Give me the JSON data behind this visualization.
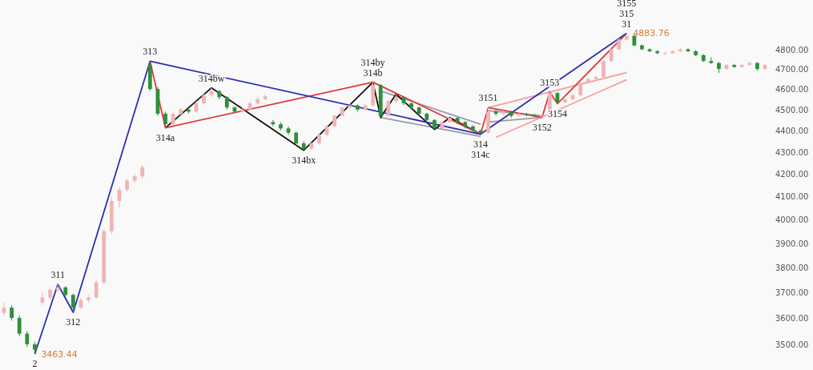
{
  "chart_data": {
    "type": "candlestick",
    "log": true,
    "tick_labels": "y",
    "ylim": [
      3405,
      5060
    ],
    "yticks": [
      {
        "value": 3500,
        "label": "3500.00"
      },
      {
        "value": 3600,
        "label": "3600.00"
      },
      {
        "value": 3700,
        "label": "3700.00"
      },
      {
        "value": 3800,
        "label": "3800.00"
      },
      {
        "value": 3900,
        "label": "3900.00"
      },
      {
        "value": 4000,
        "label": "4000.00"
      },
      {
        "value": 4100,
        "label": "4100.00"
      },
      {
        "value": 4200,
        "label": "4200.00"
      },
      {
        "value": 4300,
        "label": "4300.00"
      },
      {
        "value": 4400,
        "label": "4400.00"
      },
      {
        "value": 4500,
        "label": "4500.00"
      },
      {
        "value": 4600,
        "label": "4600.00"
      },
      {
        "value": 4700,
        "label": "4700.00"
      },
      {
        "value": 4800,
        "label": "4800.00"
      }
    ],
    "categories": [
      null,
      null,
      null,
      null,
      null,
      null,
      null,
      null,
      null,
      null,
      null,
      null,
      null,
      null,
      null,
      null,
      null,
      null,
      null,
      null,
      null,
      null,
      null,
      null,
      null,
      null,
      null,
      null,
      null,
      null,
      null,
      null,
      null,
      null,
      null,
      null,
      null,
      null,
      null,
      null,
      null,
      null,
      null,
      null,
      null,
      null,
      null,
      null,
      null,
      null,
      null,
      null,
      null,
      null,
      null,
      null,
      null,
      null,
      null,
      null,
      null,
      null,
      null,
      null,
      null,
      null,
      null,
      null,
      null,
      null,
      null,
      null,
      null,
      null,
      null,
      null,
      null,
      null,
      null,
      null,
      null,
      null,
      null,
      null,
      null,
      null,
      null,
      null,
      null,
      null,
      null,
      null,
      null,
      null,
      null,
      null,
      null,
      null,
      null,
      null
    ],
    "ohlc": [
      [
        3620,
        3660,
        3610,
        3640
      ],
      [
        3640,
        3650,
        3590,
        3600
      ],
      [
        3600,
        3610,
        3530,
        3540
      ],
      [
        3540,
        3550,
        3490,
        3500
      ],
      [
        3500,
        3510,
        3463.44,
        3480
      ],
      [
        3660,
        3700,
        3650,
        3680
      ],
      [
        3680,
        3720,
        3670,
        3710
      ],
      [
        3710,
        3732,
        3700,
        3720
      ],
      [
        3720,
        3725,
        3680,
        3690
      ],
      [
        3690,
        3695,
        3622,
        3640
      ],
      [
        3640,
        3680,
        3635,
        3670
      ],
      [
        3670,
        3690,
        3660,
        3680
      ],
      [
        3680,
        3750,
        3675,
        3740
      ],
      [
        3740,
        3960,
        3730,
        3950
      ],
      [
        3950,
        4100,
        3940,
        4080
      ],
      [
        4080,
        4140,
        4050,
        4130
      ],
      [
        4130,
        4180,
        4120,
        4170
      ],
      [
        4170,
        4200,
        4160,
        4190
      ],
      [
        4190,
        4240,
        4180,
        4230
      ],
      [
        4720,
        4739,
        4590,
        4600
      ],
      [
        4600,
        4610,
        4470,
        4480
      ],
      [
        4480,
        4490,
        4413,
        4430
      ],
      [
        4430,
        4490,
        4425,
        4480
      ],
      [
        4480,
        4510,
        4470,
        4500
      ],
      [
        4500,
        4510,
        4480,
        4490
      ],
      [
        4490,
        4540,
        4485,
        4530
      ],
      [
        4530,
        4580,
        4525,
        4570
      ],
      [
        4570,
        4606,
        4560,
        4590
      ],
      [
        4590,
        4595,
        4550,
        4560
      ],
      [
        4560,
        4565,
        4500,
        4510
      ],
      [
        4510,
        4515,
        4480,
        4490
      ],
      [
        4490,
        4510,
        4485,
        4500
      ],
      [
        4500,
        4540,
        4495,
        4530
      ],
      [
        4530,
        4560,
        4525,
        4550
      ],
      [
        4550,
        4575,
        4545,
        4565
      ],
      [
        4440,
        4450,
        4420,
        4430
      ],
      [
        4430,
        4440,
        4400,
        4410
      ],
      [
        4410,
        4420,
        4380,
        4390
      ],
      [
        4390,
        4395,
        4330,
        4340
      ],
      [
        4340,
        4350,
        4308,
        4315
      ],
      [
        4315,
        4345,
        4310,
        4340
      ],
      [
        4340,
        4385,
        4335,
        4380
      ],
      [
        4380,
        4425,
        4375,
        4420
      ],
      [
        4420,
        4475,
        4415,
        4470
      ],
      [
        4470,
        4515,
        4465,
        4510
      ],
      [
        4510,
        4530,
        4500,
        4520
      ],
      [
        4520,
        4525,
        4490,
        4500
      ],
      [
        4500,
        4530,
        4495,
        4520
      ],
      [
        4520,
        4634,
        4515,
        4620
      ],
      [
        4620,
        4625,
        4462,
        4470
      ],
      [
        4470,
        4550,
        4465,
        4540
      ],
      [
        4540,
        4575,
        4535,
        4560
      ],
      [
        4560,
        4565,
        4520,
        4530
      ],
      [
        4530,
        4535,
        4500,
        4510
      ],
      [
        4510,
        4515,
        4470,
        4480
      ],
      [
        4480,
        4485,
        4440,
        4450
      ],
      [
        4450,
        4455,
        4405,
        4410
      ],
      [
        4410,
        4445,
        4405,
        4440
      ],
      [
        4440,
        4462,
        4435,
        4460
      ],
      [
        4460,
        4465,
        4430,
        4440
      ],
      [
        4440,
        4445,
        4410,
        4420
      ],
      [
        4420,
        4425,
        4395,
        4400
      ],
      [
        4400,
        4405,
        4383,
        4390
      ],
      [
        4390,
        4509,
        4385,
        4490
      ],
      [
        4490,
        4500,
        4470,
        4480
      ],
      [
        4480,
        4495,
        4470,
        4490
      ],
      [
        4490,
        4495,
        4460,
        4470
      ],
      [
        4470,
        4485,
        4465,
        4480
      ],
      [
        4480,
        4485,
        4468,
        4475
      ],
      [
        4475,
        4480,
        4465,
        4470
      ],
      [
        4470,
        4478,
        4462,
        4470
      ],
      [
        4470,
        4586,
        4465,
        4580
      ],
      [
        4580,
        4585,
        4528,
        4535
      ],
      [
        4535,
        4555,
        4530,
        4550
      ],
      [
        4550,
        4575,
        4545,
        4570
      ],
      [
        4570,
        4635,
        4565,
        4630
      ],
      [
        4630,
        4655,
        4625,
        4650
      ],
      [
        4650,
        4665,
        4640,
        4660
      ],
      [
        4660,
        4745,
        4655,
        4740
      ],
      [
        4740,
        4805,
        4735,
        4800
      ],
      [
        4800,
        4855,
        4795,
        4850
      ],
      [
        4850,
        4883.76,
        4845,
        4870
      ],
      [
        4870,
        4875,
        4815,
        4820
      ],
      [
        4820,
        4825,
        4795,
        4800
      ],
      [
        4800,
        4805,
        4785,
        4790
      ],
      [
        4790,
        4795,
        4775,
        4780
      ],
      [
        4780,
        4790,
        4770,
        4780
      ],
      [
        4780,
        4795,
        4775,
        4790
      ],
      [
        4790,
        4805,
        4785,
        4800
      ],
      [
        4800,
        4805,
        4785,
        4790
      ],
      [
        4790,
        4795,
        4765,
        4770
      ],
      [
        4770,
        4775,
        4735,
        4740
      ],
      [
        4740,
        4760,
        4725,
        4730
      ],
      [
        4730,
        4735,
        4680,
        4700
      ],
      [
        4700,
        4725,
        4695,
        4720
      ],
      [
        4720,
        4725,
        4705,
        4710
      ],
      [
        4710,
        4725,
        4705,
        4720
      ],
      [
        4720,
        4740,
        4715,
        4730
      ],
      [
        4730,
        4735,
        4690,
        4700
      ],
      [
        4700,
        4725,
        4695,
        4720
      ]
    ],
    "annotations": [
      {
        "text": "2",
        "y": 3463
      },
      {
        "text": "311",
        "y": 3732
      },
      {
        "text": "312",
        "y": 3622
      },
      {
        "text": "313",
        "y": 4739
      },
      {
        "text": "314a",
        "y": 4413
      },
      {
        "text": "314bw",
        "y": 4606
      },
      {
        "text": "314bx",
        "y": 4308
      },
      {
        "text": "314by\n314b",
        "y": 4634
      },
      {
        "text": "314\n314c",
        "y": 4383
      },
      {
        "text": "3151",
        "y": 4509
      },
      {
        "text": "3152",
        "y": 4462
      },
      {
        "text": "3153",
        "y": 4586
      },
      {
        "text": "3154",
        "y": 4528
      },
      {
        "text": "3155\n315\n31",
        "y": 4883
      },
      "3463.44",
      "4883.76"
    ],
    "series": [
      {
        "type": "line",
        "color": "#9a9aa8",
        "values": [
          null,
          null,
          null,
          null,
          null,
          null,
          null,
          null,
          null,
          null,
          null,
          null,
          null,
          null,
          null,
          null,
          null,
          null,
          null,
          null,
          null,
          null,
          null,
          null,
          null,
          null,
          null,
          null,
          null,
          null,
          null,
          null,
          null,
          null,
          null,
          null,
          null,
          null,
          null,
          null,
          null,
          null,
          null,
          null,
          null,
          null,
          null,
          null,
          null,
          4590,
          null,
          null,
          null,
          null,
          null,
          null,
          null,
          null,
          null,
          null,
          null,
          null,
          4430,
          null,
          null,
          null,
          null,
          null,
          null,
          null,
          null,
          null,
          null,
          null,
          null,
          null,
          null,
          null,
          null,
          null,
          null,
          null,
          null,
          null,
          null,
          null,
          null,
          null,
          null,
          null,
          null,
          null,
          null,
          null,
          null,
          null,
          null,
          null,
          null,
          null
        ]
      },
      {
        "type": "line",
        "color": "#9a9aa8",
        "values": [
          null,
          null,
          null,
          null,
          null,
          null,
          null,
          null,
          null,
          null,
          null,
          null,
          null,
          null,
          null,
          null,
          null,
          null,
          null,
          null,
          null,
          null,
          null,
          null,
          null,
          null,
          null,
          null,
          null,
          null,
          null,
          null,
          null,
          null,
          null,
          null,
          null,
          null,
          null,
          null,
          null,
          null,
          null,
          null,
          null,
          null,
          null,
          null,
          null,
          4462,
          null,
          null,
          null,
          null,
          null,
          null,
          null,
          null,
          null,
          null,
          null,
          null,
          4372,
          null,
          null,
          null,
          null,
          null,
          null,
          null,
          null,
          null,
          null,
          null,
          null,
          null,
          null,
          null,
          null,
          null,
          null,
          null,
          null,
          null,
          null,
          null,
          null,
          null,
          null,
          null,
          null,
          null,
          null,
          null,
          null,
          null,
          null,
          null,
          null,
          null
        ]
      },
      {
        "type": "line",
        "color": "#9a9aa8",
        "values": [
          null,
          null,
          null,
          null,
          null,
          null,
          null,
          null,
          null,
          null,
          null,
          null,
          null,
          null,
          null,
          null,
          null,
          null,
          null,
          null,
          null,
          null,
          null,
          null,
          null,
          null,
          null,
          null,
          null,
          null,
          null,
          null,
          null,
          null,
          null,
          null,
          null,
          null,
          null,
          null,
          null,
          null,
          null,
          null,
          null,
          null,
          null,
          null,
          null,
          null,
          null,
          null,
          null,
          null,
          null,
          null,
          null,
          null,
          null,
          null,
          null,
          null,
          null,
          4495,
          null,
          null,
          null,
          null,
          null,
          null,
          4470,
          null,
          null,
          null,
          null,
          null,
          null,
          null,
          null,
          null,
          null,
          null,
          null,
          null,
          null,
          null,
          null,
          null,
          null,
          null,
          null,
          null,
          null,
          null,
          null,
          null,
          null,
          null,
          null,
          null
        ]
      },
      {
        "type": "line",
        "color": "#9a9aa8",
        "values": [
          null,
          null,
          null,
          null,
          null,
          null,
          null,
          null,
          null,
          null,
          null,
          null,
          null,
          null,
          null,
          null,
          null,
          null,
          null,
          null,
          null,
          null,
          null,
          null,
          null,
          null,
          null,
          null,
          null,
          null,
          null,
          null,
          null,
          null,
          null,
          null,
          null,
          null,
          null,
          null,
          null,
          null,
          null,
          null,
          null,
          null,
          null,
          null,
          null,
          null,
          null,
          null,
          null,
          null,
          null,
          null,
          null,
          null,
          null,
          null,
          null,
          null,
          null,
          4440,
          null,
          null,
          null,
          null,
          null,
          null,
          4462,
          null,
          null,
          null,
          null,
          null,
          null,
          null,
          null,
          null,
          null,
          null,
          null,
          null,
          null,
          null,
          null,
          null,
          null,
          null,
          null,
          null,
          null,
          null,
          null,
          null,
          null,
          null,
          null,
          null
        ]
      },
      {
        "type": "line",
        "color": "#f2a0a0",
        "values": [
          null,
          null,
          null,
          null,
          null,
          null,
          null,
          null,
          null,
          null,
          null,
          null,
          null,
          null,
          null,
          null,
          null,
          null,
          null,
          null,
          null,
          null,
          null,
          null,
          null,
          null,
          null,
          null,
          null,
          null,
          null,
          null,
          null,
          null,
          null,
          null,
          null,
          null,
          null,
          null,
          null,
          null,
          null,
          null,
          null,
          null,
          null,
          null,
          null,
          null,
          null,
          null,
          null,
          null,
          null,
          null,
          null,
          null,
          null,
          null,
          null,
          null,
          null,
          4509,
          null,
          null,
          null,
          null,
          null,
          null,
          null,
          null,
          null,
          null,
          null,
          null,
          null,
          null,
          null,
          null,
          null,
          4682,
          null,
          null,
          null,
          null,
          null,
          null,
          null,
          null,
          null,
          null,
          null,
          null,
          null,
          null,
          null,
          null,
          null,
          null
        ]
      },
      {
        "type": "line",
        "color": "#f2a0a0",
        "values": [
          null,
          null,
          null,
          null,
          null,
          null,
          null,
          null,
          null,
          null,
          null,
          null,
          null,
          null,
          null,
          null,
          null,
          null,
          null,
          null,
          null,
          null,
          null,
          null,
          null,
          null,
          null,
          null,
          null,
          null,
          null,
          null,
          null,
          null,
          null,
          null,
          null,
          null,
          null,
          null,
          null,
          null,
          null,
          null,
          null,
          null,
          null,
          null,
          null,
          null,
          null,
          null,
          null,
          null,
          null,
          null,
          null,
          null,
          null,
          null,
          null,
          null,
          null,
          null,
          4368,
          null,
          null,
          null,
          null,
          null,
          null,
          null,
          null,
          null,
          null,
          null,
          null,
          null,
          null,
          null,
          null,
          4646,
          null,
          null,
          null,
          null,
          null,
          null,
          null,
          null,
          null,
          null,
          null,
          null,
          null,
          null,
          null,
          null,
          null,
          null
        ]
      },
      {
        "type": "line",
        "color": "#111111",
        "values": [
          null,
          null,
          null,
          null,
          null,
          null,
          null,
          null,
          null,
          null,
          null,
          null,
          null,
          null,
          null,
          null,
          null,
          null,
          null,
          null,
          null,
          4413,
          null,
          null,
          null,
          null,
          null,
          4606,
          null,
          null,
          null,
          null,
          null,
          null,
          null,
          null,
          null,
          null,
          null,
          4308,
          null,
          null,
          null,
          null,
          null,
          null,
          null,
          null,
          4634,
          4462,
          null,
          4575,
          null,
          null,
          null,
          null,
          4405,
          null,
          4462,
          null,
          null,
          null,
          4383,
          null,
          null,
          null,
          null,
          null,
          null,
          null,
          null,
          null,
          null,
          null,
          null,
          null,
          null,
          null,
          null,
          null,
          null,
          null,
          null,
          null,
          null,
          null,
          null,
          null,
          null,
          null,
          null,
          null,
          null,
          null,
          null,
          null,
          null,
          null,
          null,
          null
        ]
      },
      {
        "type": "line",
        "color": "#e03a3a",
        "values": [
          null,
          null,
          null,
          null,
          null,
          null,
          null,
          null,
          null,
          null,
          null,
          null,
          null,
          null,
          null,
          null,
          null,
          null,
          null,
          4739,
          null,
          4413,
          null,
          null,
          null,
          null,
          null,
          null,
          null,
          null,
          null,
          null,
          null,
          null,
          null,
          null,
          null,
          null,
          null,
          null,
          null,
          null,
          null,
          null,
          null,
          null,
          null,
          null,
          4634,
          null,
          null,
          null,
          null,
          null,
          null,
          null,
          null,
          null,
          null,
          null,
          null,
          null,
          4383,
          4509,
          null,
          null,
          null,
          null,
          null,
          null,
          4462,
          4586,
          4528,
          null,
          null,
          null,
          null,
          null,
          null,
          null,
          null,
          4883,
          null,
          null,
          null,
          null,
          null,
          null,
          null,
          null,
          null,
          null,
          null,
          null,
          null,
          null,
          null,
          null,
          null,
          null
        ]
      },
      {
        "type": "line",
        "color": "#2b2fb0",
        "values": [
          null,
          null,
          null,
          null,
          3463,
          null,
          null,
          3732,
          null,
          3622,
          null,
          null,
          null,
          null,
          null,
          null,
          null,
          null,
          null,
          4739,
          null,
          null,
          null,
          null,
          null,
          null,
          null,
          null,
          null,
          null,
          null,
          null,
          null,
          null,
          null,
          null,
          null,
          null,
          null,
          null,
          null,
          null,
          null,
          null,
          null,
          null,
          null,
          null,
          null,
          null,
          null,
          null,
          null,
          null,
          null,
          null,
          null,
          null,
          null,
          null,
          null,
          null,
          4383,
          null,
          null,
          null,
          null,
          null,
          null,
          null,
          null,
          null,
          null,
          null,
          null,
          null,
          null,
          null,
          null,
          null,
          null,
          4883,
          null,
          null,
          null,
          null,
          null,
          null,
          null,
          null,
          null,
          null,
          null,
          null,
          null,
          null,
          null,
          null,
          null,
          null
        ]
      }
    ]
  }
}
